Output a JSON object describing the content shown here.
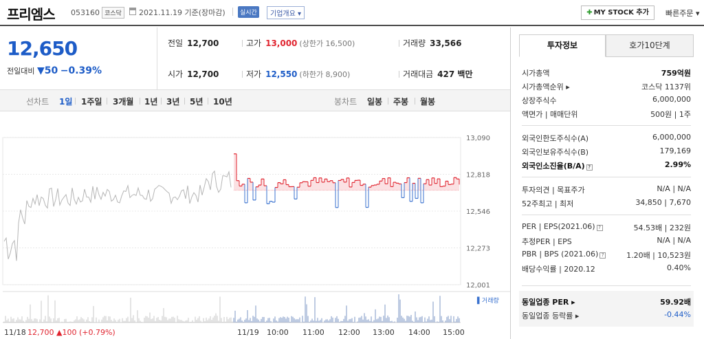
{
  "header": {
    "name": "프리엠스",
    "code": "053160",
    "market": "코스닥",
    "date": "2021.11.19  기준(장마감)",
    "realtime": "실시간",
    "company_info": "기업개요 ▾",
    "mystock": "MY STOCK 추가",
    "quick_order": "빠른주문 ▾"
  },
  "price": {
    "current": "12,650",
    "change_label": "전일대비",
    "change": "▼50",
    "change_pct": "−0.39%"
  },
  "summary": {
    "prev_label": "전일",
    "prev": "12,700",
    "high_label": "고가",
    "high": "13,000",
    "upper_limit": "(상한가 16,500)",
    "volume_label": "거래량",
    "volume": "33,566",
    "open_label": "시가",
    "open": "12,700",
    "low_label": "저가",
    "low": "12,550",
    "lower_limit": "(하한가 8,900)",
    "amount_label": "거래대금",
    "amount": "427 백만"
  },
  "tabs": {
    "line_label": "선차트",
    "periods": [
      "1일",
      "1주일",
      "3개월",
      "1년",
      "3년",
      "5년",
      "10년"
    ],
    "candle_label": "봉차트",
    "candles": [
      "일봉",
      "주봉",
      "월봉"
    ]
  },
  "chart_data": {
    "type": "line",
    "y_ticks": [
      "13,090",
      "12,818",
      "12,546",
      "12,273",
      "12,001"
    ],
    "ylim": [
      12001,
      13090
    ],
    "x_ticks": [
      "11/19",
      "10:00",
      "11:00",
      "12:00",
      "13:00",
      "14:00",
      "15:00"
    ],
    "prev_day_label": "11/18",
    "prev_close": "12,700",
    "prev_change": "▲100",
    "prev_change_pct": "(+0.79%)",
    "volume_label": "▌거래량",
    "colors": {
      "up": "#e0242f",
      "down": "#3a72cf",
      "prev_day": "#b5b5b5"
    }
  },
  "right_panel": {
    "tab_active": "투자정보",
    "tab_other": "호가10단계",
    "rows": [
      {
        "k": "시가총액",
        "v": "759억원",
        "bold": true
      },
      {
        "k": "시가총액순위 ▸",
        "v": "코스닥 1137위"
      },
      {
        "k": "상장주식수",
        "v": "6,000,000"
      },
      {
        "k": "액면가 | 매매단위",
        "v": "500원 | 1주"
      },
      {
        "k": "외국인한도주식수(A)",
        "v": "6,000,000"
      },
      {
        "k": "외국인보유주식수(B)",
        "v": "179,169"
      },
      {
        "k": "외국인소진율(B/A)",
        "v": "2.99%",
        "bold": true
      },
      {
        "k": "투자의견 | 목표주가",
        "v": "N/A | N/A"
      },
      {
        "k": "52주최고 | 최저",
        "v": "34,850 | 7,670"
      },
      {
        "k": "PER | EPS(2021.06)",
        "v": "54.53배 | 232원"
      },
      {
        "k": "추정PER | EPS",
        "v": "N/A | N/A"
      },
      {
        "k": "PBR | BPS (2021.06)",
        "v": "1.20배 | 10,523원"
      },
      {
        "k": "배당수익률 | 2020.12",
        "v": "0.40%"
      },
      {
        "k": "동일업종 PER ▸",
        "v": "59.92배",
        "bold": true
      },
      {
        "k": "동일업종 등락률 ▸",
        "v": "-0.44%",
        "blue": true
      }
    ]
  }
}
